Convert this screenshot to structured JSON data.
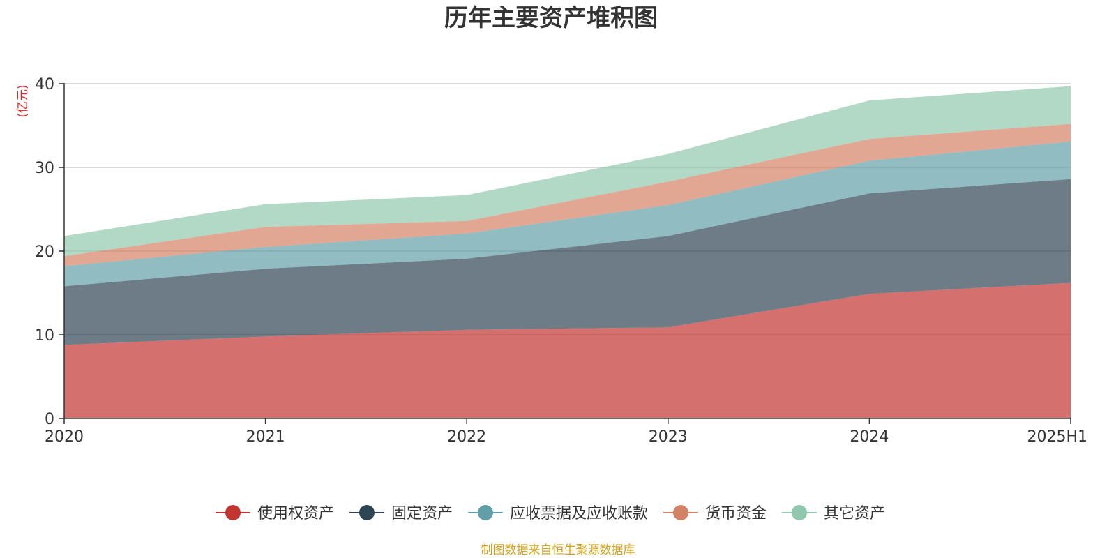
{
  "chart_data": {
    "type": "area",
    "stacked": true,
    "title": "历年主要资产堆积图",
    "unit_label": "(亿元)",
    "categories": [
      "2020",
      "2021",
      "2022",
      "2023",
      "2024",
      "2025H1"
    ],
    "ylim": [
      0,
      40
    ],
    "yticks": [
      "0",
      "10",
      "20",
      "30",
      "40"
    ],
    "grid": true,
    "legend_position": "bottom",
    "series": [
      {
        "name": "使用权资产",
        "color": "#c23531",
        "values": [
          8.8,
          9.8,
          10.6,
          10.9,
          14.9,
          16.2
        ]
      },
      {
        "name": "固定资产",
        "color": "#2f4554",
        "values": [
          7.0,
          8.1,
          8.5,
          10.9,
          12.0,
          12.4
        ]
      },
      {
        "name": "应收票据及应收账款",
        "color": "#61a0a8",
        "values": [
          2.4,
          2.6,
          3.0,
          3.7,
          3.9,
          4.5
        ]
      },
      {
        "name": "货币资金",
        "color": "#d48265",
        "values": [
          1.2,
          2.4,
          1.5,
          2.8,
          2.6,
          2.1
        ]
      },
      {
        "name": "其它资产",
        "color": "#91c7ae",
        "values": [
          2.4,
          2.7,
          3.1,
          3.3,
          4.6,
          4.5
        ]
      }
    ]
  },
  "source_note": "制图数据来自恒生聚源数据库",
  "colors": {
    "unit_label": "#e52222",
    "source_note": "#d4a017",
    "axis": "#333333",
    "grid": "#cccccc"
  }
}
